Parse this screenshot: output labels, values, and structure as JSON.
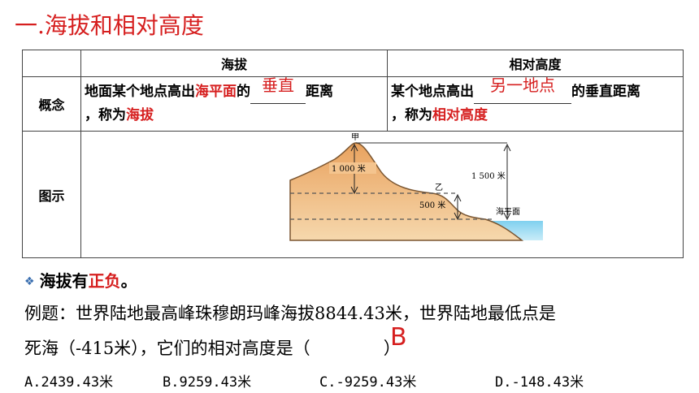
{
  "title": "一.海拔和相对高度",
  "table": {
    "col1": "海拔",
    "col2": "相对高度",
    "row1_label": "概念",
    "row2_label": "图示",
    "altitude_pre": "地面某个地点高出",
    "altitude_red1": "海平面",
    "altitude_mid": "的",
    "altitude_fill": "垂直",
    "altitude_post": "距离",
    "altitude_line2_pre": "，称为",
    "altitude_line2_red": "海拔",
    "relative_pre": "某个地点高出",
    "relative_fill": "另一地点",
    "relative_post": "的垂直距离",
    "relative_line2_pre": "，称为",
    "relative_line2_red": "相对高度"
  },
  "diagram": {
    "peak_label": "甲",
    "second_label": "乙",
    "h1000": "1 000 米",
    "h1500": "1 500 米",
    "h500": "500 米",
    "sea_label": "海平面"
  },
  "bullet": {
    "pre": "海拔有",
    "red": "正负",
    "post": "。"
  },
  "question": {
    "line1": "例题：世界陆地最高峰珠穆朗玛峰海拔8844.43米，世界陆地最低点是",
    "line2": "死海（-415米），它们的相对高度是（",
    "line2_end": "）",
    "answer": "B"
  },
  "options": [
    "A.2439.43米",
    "B.9259.43米",
    "C.-9259.43米",
    "D.-148.43米"
  ]
}
